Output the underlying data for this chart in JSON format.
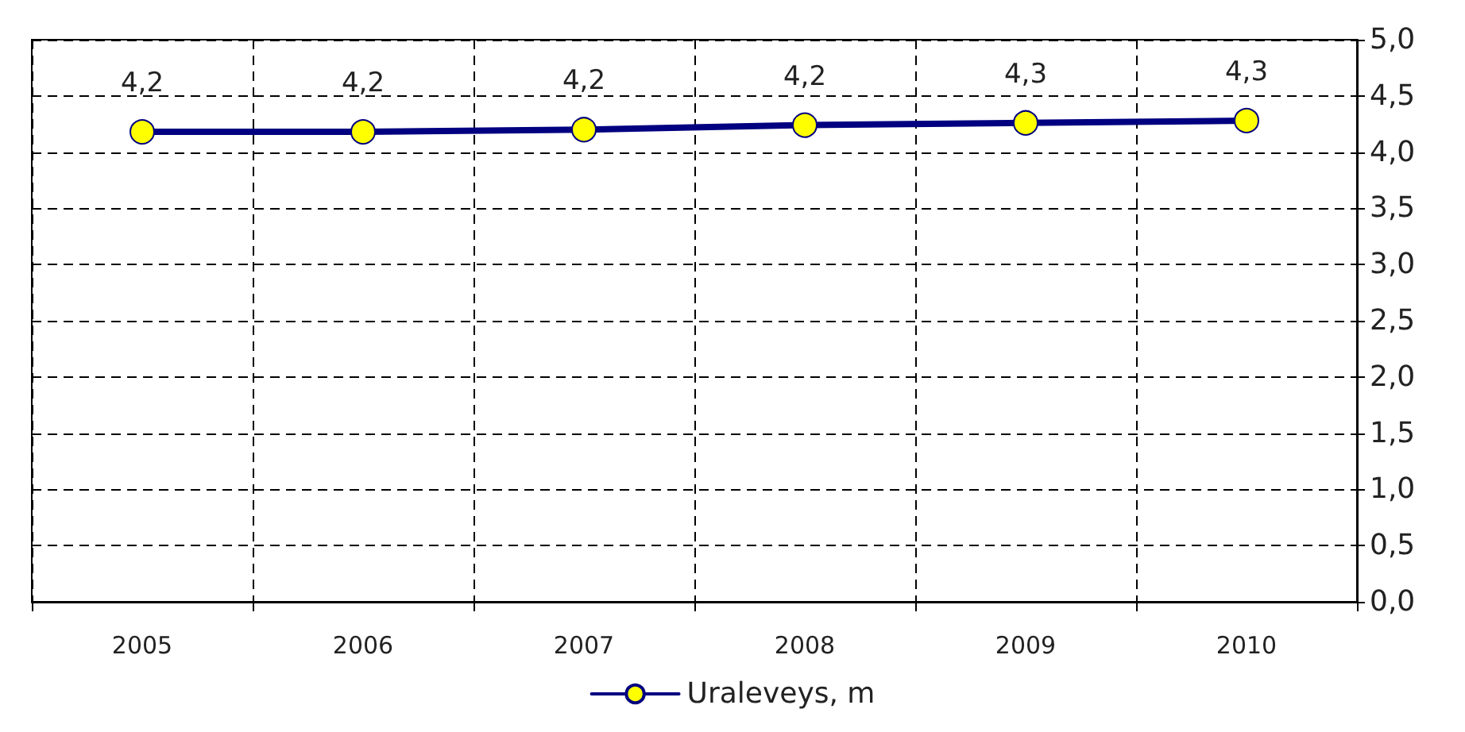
{
  "chart_data": {
    "type": "line",
    "categories": [
      "2005",
      "2006",
      "2007",
      "2008",
      "2009",
      "2010"
    ],
    "series": [
      {
        "name": "Uraleveys, m",
        "color": "#000080",
        "values": [
          4.18,
          4.18,
          4.2,
          4.24,
          4.26,
          4.28
        ],
        "value_labels": [
          "4,2",
          "4,2",
          "4,2",
          "4,2",
          "4,3",
          "4,3"
        ]
      }
    ],
    "ylim": [
      0,
      5
    ],
    "yticks": [
      {
        "value": 0,
        "label": "0,0"
      },
      {
        "value": 0.5,
        "label": "0,5"
      },
      {
        "value": 1,
        "label": "1,0"
      },
      {
        "value": 1.5,
        "label": "1,5"
      },
      {
        "value": 2,
        "label": "2,0"
      },
      {
        "value": 2.5,
        "label": "2,5"
      },
      {
        "value": 3,
        "label": "3,0"
      },
      {
        "value": 3.5,
        "label": "3,5"
      },
      {
        "value": 4,
        "label": "4,0"
      },
      {
        "value": 4.5,
        "label": "4,5"
      },
      {
        "value": 5,
        "label": "5,0"
      }
    ],
    "grid": true,
    "legend": "bottom",
    "marker": "circle",
    "line_style": "solid"
  }
}
